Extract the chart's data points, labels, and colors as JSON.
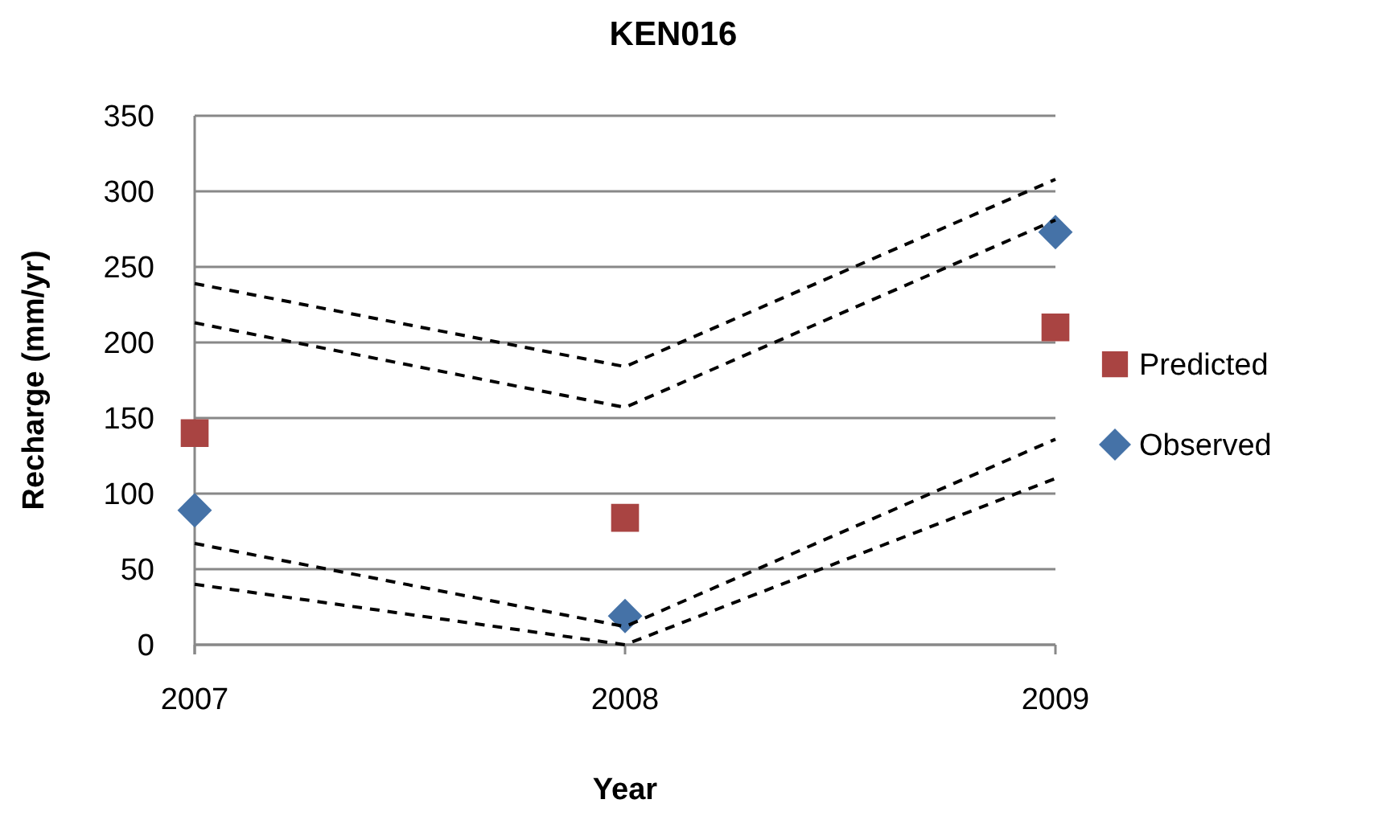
{
  "chart_data": {
    "type": "scatter",
    "title": "KEN016",
    "xlabel": "Year",
    "ylabel": "Recharge (mm/yr)",
    "categories": [
      "2007",
      "2008",
      "2009"
    ],
    "ylim": [
      0,
      350
    ],
    "yticks": [
      0,
      50,
      100,
      150,
      200,
      250,
      300,
      350
    ],
    "grid": "y",
    "legend": "right",
    "series": [
      {
        "type": "line",
        "color": "#000000",
        "line_style": "dashed",
        "marker": "none",
        "values": [
          239,
          184,
          308
        ]
      },
      {
        "type": "line",
        "color": "#000000",
        "line_style": "dashed",
        "marker": "none",
        "values": [
          213,
          157,
          281
        ]
      },
      {
        "type": "line",
        "color": "#000000",
        "line_style": "dashed",
        "marker": "none",
        "values": [
          67,
          12,
          136
        ]
      },
      {
        "type": "line",
        "color": "#000000",
        "line_style": "dashed",
        "marker": "none",
        "values": [
          40,
          0,
          110
        ]
      },
      {
        "name": "Predicted",
        "color": "#a94442",
        "marker": "square",
        "values": [
          140,
          84,
          210
        ]
      },
      {
        "name": "Observed",
        "color": "#4572a7",
        "marker": "diamond",
        "values": [
          89,
          19,
          273
        ]
      }
    ]
  }
}
